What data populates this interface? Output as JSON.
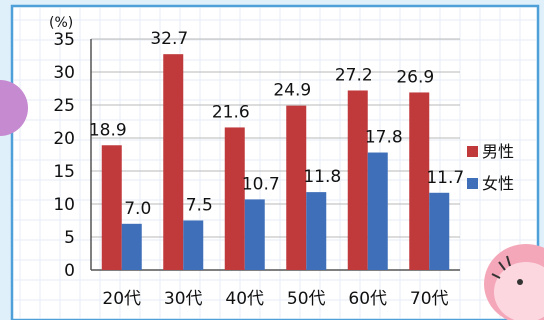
{
  "chart_data": {
    "type": "bar",
    "unit": "(%)",
    "categories": [
      "20代",
      "30代",
      "40代",
      "50代",
      "60代",
      "70代"
    ],
    "series": [
      {
        "name": "男性",
        "values": [
          18.9,
          32.7,
          21.6,
          24.9,
          27.2,
          26.9
        ],
        "color": "#c0393b"
      },
      {
        "name": "女性",
        "values": [
          7.0,
          7.5,
          10.7,
          11.8,
          17.8,
          11.7
        ],
        "color": "#3f6fb8"
      }
    ],
    "data_labels": [
      [
        "18.9",
        "32.7",
        "21.6",
        "24.9",
        "27.2",
        "26.9"
      ],
      [
        "7.0",
        "7.5",
        "10.7",
        "11.8",
        "17.8",
        "11.7"
      ]
    ],
    "ylim": [
      0,
      35
    ],
    "yticks": [
      0,
      5,
      10,
      15,
      20,
      25,
      30,
      35
    ],
    "grid": true,
    "legend_position": "right"
  }
}
